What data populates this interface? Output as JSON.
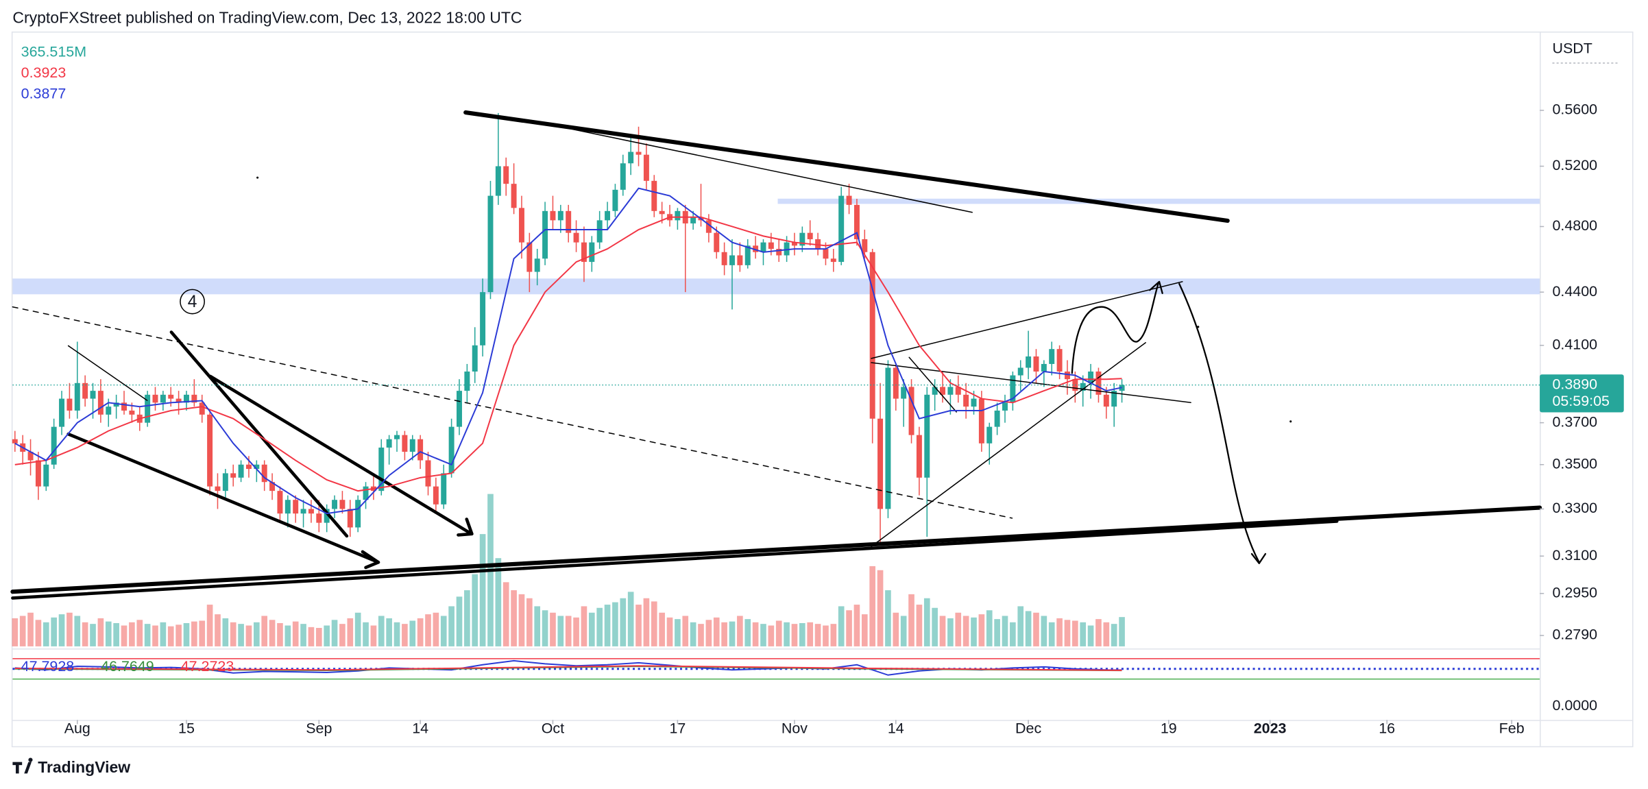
{
  "header": "CryptoFXStreet published on TradingView.com, Dec 13, 2022 18:00 UTC",
  "footer_logo": "TradingView",
  "chart_data": {
    "type": "candlestick",
    "currency": "USDT",
    "log_scale": true,
    "xlim": [
      -0.3,
      195.6
    ],
    "xticks": [
      {
        "value": 8,
        "label": "Aug"
      },
      {
        "value": 22,
        "label": "15"
      },
      {
        "value": 39,
        "label": "Sep"
      },
      {
        "value": 52,
        "label": "14"
      },
      {
        "value": 69,
        "label": "Oct"
      },
      {
        "value": 85,
        "label": "17"
      },
      {
        "value": 100,
        "label": "Nov"
      },
      {
        "value": 113,
        "label": "14"
      },
      {
        "value": 130,
        "label": "Dec"
      },
      {
        "value": 148,
        "label": "19"
      },
      {
        "value": 161,
        "label": "2023"
      },
      {
        "value": 176,
        "label": "16"
      },
      {
        "value": 192,
        "label": "Feb"
      }
    ],
    "ylim": [
      0.275,
      0.62
    ],
    "yticks": [
      {
        "value": 0.56,
        "label": "0.5600"
      },
      {
        "value": 0.52,
        "label": "0.5200"
      },
      {
        "value": 0.48,
        "label": "0.4800"
      },
      {
        "value": 0.44,
        "label": "0.4400"
      },
      {
        "value": 0.41,
        "label": "0.4100"
      },
      {
        "value": 0.37,
        "label": "0.3700"
      },
      {
        "value": 0.35,
        "label": "0.3500"
      },
      {
        "value": 0.33,
        "label": "0.3300"
      },
      {
        "value": 0.31,
        "label": "0.3100"
      },
      {
        "value": 0.295,
        "label": "0.2950"
      },
      {
        "value": 0.279,
        "label": "0.2790"
      }
    ],
    "up_color": "#26a69a",
    "down_color": "#ef5350",
    "ohlc": [
      [
        0.362,
        0.366,
        0.356,
        0.36
      ],
      [
        0.36,
        0.364,
        0.35,
        0.356
      ],
      [
        0.356,
        0.362,
        0.345,
        0.352
      ],
      [
        0.352,
        0.356,
        0.334,
        0.34
      ],
      [
        0.34,
        0.352,
        0.338,
        0.35
      ],
      [
        0.35,
        0.372,
        0.348,
        0.368
      ],
      [
        0.368,
        0.386,
        0.364,
        0.382
      ],
      [
        0.382,
        0.39,
        0.372,
        0.376
      ],
      [
        0.376,
        0.412,
        0.372,
        0.39
      ],
      [
        0.39,
        0.394,
        0.378,
        0.382
      ],
      [
        0.382,
        0.39,
        0.372,
        0.386
      ],
      [
        0.386,
        0.392,
        0.37,
        0.374
      ],
      [
        0.374,
        0.382,
        0.368,
        0.378
      ],
      [
        0.378,
        0.384,
        0.372,
        0.38
      ],
      [
        0.38,
        0.386,
        0.374,
        0.376
      ],
      [
        0.376,
        0.38,
        0.37,
        0.374
      ],
      [
        0.374,
        0.378,
        0.366,
        0.37
      ],
      [
        0.37,
        0.386,
        0.368,
        0.384
      ],
      [
        0.384,
        0.388,
        0.376,
        0.38
      ],
      [
        0.38,
        0.386,
        0.376,
        0.384
      ],
      [
        0.384,
        0.388,
        0.378,
        0.382
      ],
      [
        0.382,
        0.386,
        0.374,
        0.38
      ],
      [
        0.38,
        0.386,
        0.376,
        0.384
      ],
      [
        0.384,
        0.392,
        0.378,
        0.38
      ],
      [
        0.38,
        0.384,
        0.37,
        0.374
      ],
      [
        0.374,
        0.376,
        0.336,
        0.34
      ],
      [
        0.34,
        0.346,
        0.33,
        0.338
      ],
      [
        0.338,
        0.348,
        0.334,
        0.346
      ],
      [
        0.346,
        0.35,
        0.34,
        0.344
      ],
      [
        0.344,
        0.352,
        0.342,
        0.35
      ],
      [
        0.35,
        0.354,
        0.344,
        0.348
      ],
      [
        0.348,
        0.352,
        0.342,
        0.35
      ],
      [
        0.35,
        0.352,
        0.338,
        0.342
      ],
      [
        0.342,
        0.346,
        0.334,
        0.338
      ],
      [
        0.338,
        0.34,
        0.324,
        0.328
      ],
      [
        0.328,
        0.336,
        0.322,
        0.334
      ],
      [
        0.334,
        0.336,
        0.324,
        0.328
      ],
      [
        0.328,
        0.334,
        0.322,
        0.33
      ],
      [
        0.33,
        0.334,
        0.324,
        0.328
      ],
      [
        0.328,
        0.334,
        0.32,
        0.324
      ],
      [
        0.324,
        0.332,
        0.32,
        0.33
      ],
      [
        0.33,
        0.336,
        0.326,
        0.334
      ],
      [
        0.334,
        0.338,
        0.328,
        0.33
      ],
      [
        0.33,
        0.334,
        0.318,
        0.322
      ],
      [
        0.322,
        0.336,
        0.32,
        0.334
      ],
      [
        0.334,
        0.342,
        0.33,
        0.34
      ],
      [
        0.34,
        0.346,
        0.334,
        0.338
      ],
      [
        0.338,
        0.362,
        0.336,
        0.358
      ],
      [
        0.358,
        0.364,
        0.35,
        0.362
      ],
      [
        0.362,
        0.366,
        0.356,
        0.364
      ],
      [
        0.364,
        0.366,
        0.352,
        0.356
      ],
      [
        0.356,
        0.364,
        0.352,
        0.362
      ],
      [
        0.362,
        0.364,
        0.348,
        0.352
      ],
      [
        0.352,
        0.356,
        0.336,
        0.34
      ],
      [
        0.34,
        0.344,
        0.328,
        0.332
      ],
      [
        0.332,
        0.35,
        0.33,
        0.346
      ],
      [
        0.346,
        0.372,
        0.344,
        0.368
      ],
      [
        0.368,
        0.392,
        0.364,
        0.386
      ],
      [
        0.386,
        0.4,
        0.38,
        0.396
      ],
      [
        0.396,
        0.42,
        0.39,
        0.41
      ],
      [
        0.41,
        0.448,
        0.404,
        0.44
      ],
      [
        0.44,
        0.51,
        0.436,
        0.5
      ],
      [
        0.5,
        0.558,
        0.494,
        0.52
      ],
      [
        0.52,
        0.526,
        0.5,
        0.508
      ],
      [
        0.508,
        0.522,
        0.488,
        0.492
      ],
      [
        0.492,
        0.5,
        0.46,
        0.47
      ],
      [
        0.47,
        0.476,
        0.44,
        0.452
      ],
      [
        0.452,
        0.466,
        0.444,
        0.46
      ],
      [
        0.46,
        0.496,
        0.456,
        0.49
      ],
      [
        0.49,
        0.5,
        0.478,
        0.484
      ],
      [
        0.484,
        0.494,
        0.476,
        0.49
      ],
      [
        0.49,
        0.494,
        0.47,
        0.476
      ],
      [
        0.476,
        0.484,
        0.464,
        0.47
      ],
      [
        0.47,
        0.48,
        0.446,
        0.458
      ],
      [
        0.458,
        0.474,
        0.452,
        0.47
      ],
      [
        0.47,
        0.49,
        0.466,
        0.484
      ],
      [
        0.484,
        0.496,
        0.478,
        0.49
      ],
      [
        0.49,
        0.508,
        0.486,
        0.504
      ],
      [
        0.504,
        0.528,
        0.5,
        0.522
      ],
      [
        0.522,
        0.54,
        0.514,
        0.53
      ],
      [
        0.53,
        0.548,
        0.52,
        0.528
      ],
      [
        0.528,
        0.536,
        0.504,
        0.51
      ],
      [
        0.51,
        0.514,
        0.486,
        0.49
      ],
      [
        0.49,
        0.496,
        0.482,
        0.488
      ],
      [
        0.488,
        0.494,
        0.48,
        0.484
      ],
      [
        0.484,
        0.492,
        0.478,
        0.49
      ],
      [
        0.49,
        0.494,
        0.44,
        0.482
      ],
      [
        0.482,
        0.49,
        0.478,
        0.486
      ],
      [
        0.486,
        0.508,
        0.48,
        0.484
      ],
      [
        0.484,
        0.488,
        0.47,
        0.476
      ],
      [
        0.476,
        0.48,
        0.46,
        0.464
      ],
      [
        0.464,
        0.47,
        0.45,
        0.456
      ],
      [
        0.456,
        0.472,
        0.43,
        0.462
      ],
      [
        0.462,
        0.47,
        0.452,
        0.456
      ],
      [
        0.456,
        0.472,
        0.454,
        0.468
      ],
      [
        0.468,
        0.474,
        0.46,
        0.464
      ],
      [
        0.464,
        0.472,
        0.456,
        0.47
      ],
      [
        0.47,
        0.476,
        0.462,
        0.466
      ],
      [
        0.466,
        0.472,
        0.458,
        0.462
      ],
      [
        0.462,
        0.474,
        0.458,
        0.47
      ],
      [
        0.47,
        0.476,
        0.462,
        0.468
      ],
      [
        0.468,
        0.48,
        0.464,
        0.476
      ],
      [
        0.476,
        0.484,
        0.468,
        0.472
      ],
      [
        0.472,
        0.476,
        0.462,
        0.466
      ],
      [
        0.466,
        0.47,
        0.456,
        0.46
      ],
      [
        0.46,
        0.466,
        0.452,
        0.458
      ],
      [
        0.458,
        0.506,
        0.456,
        0.5
      ],
      [
        0.5,
        0.508,
        0.488,
        0.494
      ],
      [
        0.494,
        0.498,
        0.468,
        0.472
      ],
      [
        0.472,
        0.478,
        0.46,
        0.464
      ],
      [
        0.464,
        0.466,
        0.36,
        0.372
      ],
      [
        0.372,
        0.39,
        0.315,
        0.33
      ],
      [
        0.33,
        0.402,
        0.326,
        0.398
      ],
      [
        0.398,
        0.4,
        0.376,
        0.382
      ],
      [
        0.382,
        0.392,
        0.368,
        0.388
      ],
      [
        0.388,
        0.392,
        0.36,
        0.364
      ],
      [
        0.364,
        0.368,
        0.336,
        0.344
      ],
      [
        0.344,
        0.388,
        0.318,
        0.384
      ],
      [
        0.384,
        0.392,
        0.376,
        0.388
      ],
      [
        0.388,
        0.396,
        0.38,
        0.384
      ],
      [
        0.384,
        0.392,
        0.374,
        0.388
      ],
      [
        0.388,
        0.394,
        0.38,
        0.384
      ],
      [
        0.384,
        0.39,
        0.372,
        0.378
      ],
      [
        0.378,
        0.386,
        0.374,
        0.382
      ],
      [
        0.382,
        0.386,
        0.356,
        0.36
      ],
      [
        0.36,
        0.37,
        0.35,
        0.368
      ],
      [
        0.368,
        0.38,
        0.364,
        0.376
      ],
      [
        0.376,
        0.384,
        0.37,
        0.38
      ],
      [
        0.38,
        0.396,
        0.376,
        0.394
      ],
      [
        0.394,
        0.402,
        0.386,
        0.398
      ],
      [
        0.398,
        0.418,
        0.392,
        0.404
      ],
      [
        0.404,
        0.408,
        0.39,
        0.396
      ],
      [
        0.396,
        0.402,
        0.388,
        0.4
      ],
      [
        0.4,
        0.412,
        0.394,
        0.408
      ],
      [
        0.408,
        0.41,
        0.392,
        0.396
      ],
      [
        0.396,
        0.402,
        0.384,
        0.392
      ],
      [
        0.392,
        0.396,
        0.38,
        0.386
      ],
      [
        0.386,
        0.394,
        0.378,
        0.39
      ],
      [
        0.39,
        0.4,
        0.382,
        0.396
      ],
      [
        0.396,
        0.398,
        0.38,
        0.384
      ],
      [
        0.384,
        0.388,
        0.372,
        0.378
      ],
      [
        0.378,
        0.39,
        0.368,
        0.386
      ],
      [
        0.386,
        0.392,
        0.38,
        0.389
      ]
    ],
    "last_price_label": "0.3890",
    "countdown": "05:59:05",
    "volume": {
      "color": "#26a69a",
      "value_label": "365.515M",
      "values": [
        350,
        380,
        420,
        330,
        300,
        360,
        400,
        420,
        380,
        300,
        280,
        350,
        310,
        290,
        260,
        300,
        330,
        280,
        260,
        300,
        250,
        270,
        290,
        310,
        320,
        520,
        400,
        350,
        300,
        280,
        260,
        300,
        380,
        330,
        290,
        260,
        310,
        280,
        240,
        230,
        260,
        330,
        280,
        350,
        420,
        300,
        260,
        380,
        350,
        300,
        280,
        320,
        350,
        400,
        420,
        380,
        500,
        620,
        700,
        900,
        1400,
        1900,
        1100,
        800,
        700,
        650,
        600,
        500,
        450,
        420,
        380,
        380,
        360,
        500,
        420,
        480,
        520,
        550,
        600,
        680,
        520,
        600,
        560,
        420,
        360,
        340,
        380,
        300,
        280,
        330,
        360,
        300,
        310,
        380,
        340,
        300,
        280,
        260,
        320,
        300,
        280,
        290,
        300,
        280,
        260,
        280,
        500,
        450,
        520,
        400,
        1000,
        950,
        700,
        420,
        380,
        650,
        520,
        600,
        480,
        380,
        350,
        420,
        380,
        360,
        400,
        450,
        340,
        380,
        300,
        500,
        440,
        420,
        380,
        300,
        350,
        330,
        320,
        300,
        260,
        340,
        300,
        280,
        365.515
      ]
    },
    "series": [
      {
        "color": "#f23645",
        "x": [
          0,
          4,
          8,
          12,
          16,
          20,
          24,
          28,
          32,
          36,
          40,
          44,
          48,
          52,
          56,
          60,
          64,
          68,
          72,
          76,
          80,
          84,
          88,
          92,
          96,
          100,
          104,
          108,
          112,
          116,
          120,
          124,
          128,
          132,
          136,
          140,
          142
        ],
        "values": [
          0.35,
          0.352,
          0.358,
          0.366,
          0.372,
          0.376,
          0.378,
          0.372,
          0.362,
          0.352,
          0.343,
          0.338,
          0.34,
          0.344,
          0.346,
          0.36,
          0.41,
          0.44,
          0.458,
          0.466,
          0.478,
          0.486,
          0.486,
          0.48,
          0.474,
          0.47,
          0.468,
          0.47,
          0.44,
          0.41,
          0.39,
          0.382,
          0.38,
          0.386,
          0.392,
          0.392,
          0.3923
        ]
      },
      {
        "color": "#2b3bd6",
        "x": [
          0,
          4,
          8,
          12,
          16,
          20,
          24,
          28,
          32,
          36,
          40,
          44,
          48,
          52,
          56,
          60,
          64,
          68,
          72,
          76,
          80,
          84,
          88,
          92,
          96,
          100,
          104,
          108,
          112,
          116,
          120,
          124,
          128,
          132,
          136,
          140,
          142
        ],
        "values": [
          0.36,
          0.352,
          0.37,
          0.38,
          0.378,
          0.38,
          0.381,
          0.36,
          0.344,
          0.335,
          0.328,
          0.33,
          0.345,
          0.356,
          0.35,
          0.385,
          0.46,
          0.478,
          0.478,
          0.478,
          0.505,
          0.5,
          0.485,
          0.47,
          0.464,
          0.466,
          0.466,
          0.476,
          0.41,
          0.372,
          0.376,
          0.376,
          0.382,
          0.396,
          0.394,
          0.386,
          0.3877
        ]
      }
    ],
    "annotation": "4",
    "pane": {
      "type": "line",
      "ylim": [
        -50,
        90
      ],
      "scale_label": "0.0000",
      "levels": [
        {
          "value": 70,
          "color": "#f23645",
          "style": "solid"
        },
        {
          "value": 50,
          "color": "#2b3bd6",
          "style": "dotted"
        },
        {
          "value": 30,
          "color": "#4caf50",
          "style": "solid"
        }
      ],
      "series": [
        {
          "color": "#2b3bd6",
          "x": [
            0,
            4,
            8,
            12,
            16,
            20,
            24,
            28,
            32,
            36,
            40,
            44,
            48,
            52,
            56,
            60,
            64,
            68,
            72,
            76,
            80,
            84,
            88,
            92,
            96,
            100,
            104,
            108,
            112,
            116,
            120,
            124,
            128,
            132,
            136,
            140,
            142
          ],
          "values": [
            52,
            48,
            55,
            54,
            52,
            53,
            50,
            42,
            45,
            44,
            43,
            46,
            52,
            50,
            48,
            58,
            66,
            60,
            56,
            58,
            62,
            57,
            52,
            48,
            50,
            52,
            50,
            58,
            38,
            46,
            50,
            48,
            52,
            54,
            50,
            48,
            47.7928
          ]
        },
        {
          "color": "#388e3c",
          "x": [
            0,
            40,
            80,
            110,
            142
          ],
          "values": [
            50,
            47,
            55,
            50,
            46.7649
          ]
        },
        {
          "color": "#f23645",
          "x": [
            0,
            40,
            80,
            110,
            142
          ],
          "values": [
            51,
            48,
            56,
            51,
            47.2723
          ]
        }
      ]
    }
  }
}
